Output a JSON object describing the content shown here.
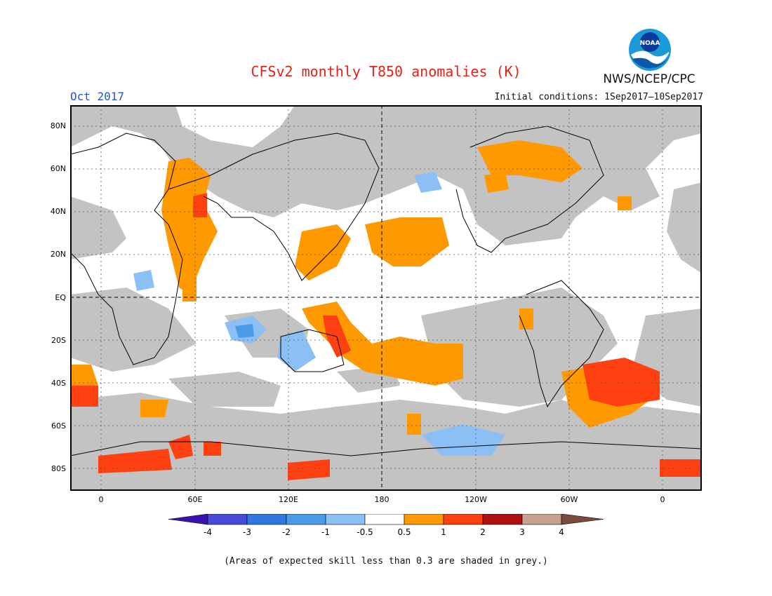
{
  "header": {
    "title": "CFSv2 monthly T850 anomalies (K)",
    "month": "Oct 2017",
    "initial_conditions": "Initial conditions: 1Sep2017–10Sep2017",
    "agency": "NWS/NCEP/CPC",
    "logo_text": "NOAA"
  },
  "map": {
    "lat_labels": [
      "80N",
      "60N",
      "40N",
      "20N",
      "EQ",
      "20S",
      "40S",
      "60S",
      "80S"
    ],
    "lon_labels": [
      "0",
      "60E",
      "120E",
      "180",
      "120W",
      "60W",
      "0"
    ]
  },
  "colorbar": {
    "labels": [
      "-4",
      "-3",
      "-2",
      "-1",
      "-0.5",
      "0.5",
      "1",
      "2",
      "3",
      "4"
    ],
    "colors": [
      "#3a12b0",
      "#4a4ad8",
      "#2f78e0",
      "#4a9ae8",
      "#8cc0f4",
      "#ffffff",
      "#ff9900",
      "#ff4010",
      "#b01010",
      "#c8a090",
      "#7a4a3a"
    ]
  },
  "footnote": "(Areas of expected skill less than 0.3 are shaded in grey.)"
}
